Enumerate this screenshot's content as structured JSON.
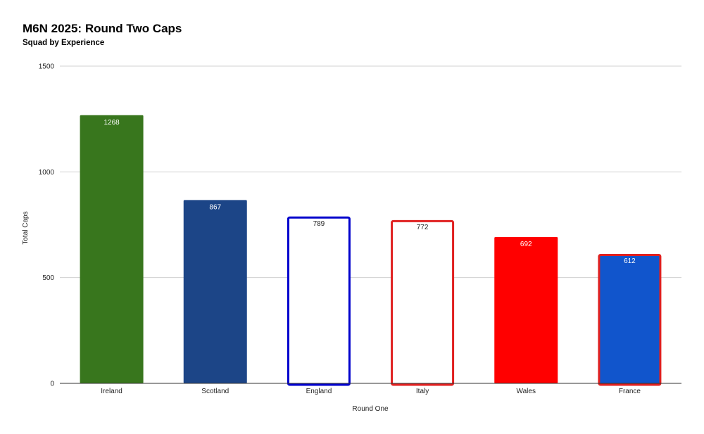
{
  "chart_data": {
    "type": "bar",
    "title": "M6N 2025: Round Two Caps",
    "subtitle": "Squad by Experience",
    "xlabel": "Round One",
    "ylabel": "Total Caps",
    "ylim": [
      0,
      1500
    ],
    "yticks": [
      0,
      500,
      1000,
      1500
    ],
    "grid": true,
    "categories": [
      "Ireland",
      "Scotland",
      "England",
      "Italy",
      "Wales",
      "France"
    ],
    "values": [
      1268,
      867,
      789,
      772,
      692,
      612
    ],
    "bar_styles": [
      {
        "fill": "#38761d",
        "stroke": "none",
        "label_color": "#ffffff"
      },
      {
        "fill": "#1c4587",
        "stroke": "none",
        "label_color": "#ffffff"
      },
      {
        "fill": "#ffffff",
        "stroke": "#0000cc",
        "label_color": "#222222"
      },
      {
        "fill": "#ffffff",
        "stroke": "#e02020",
        "label_color": "#222222"
      },
      {
        "fill": "#ff0000",
        "stroke": "none",
        "label_color": "#ffffff"
      },
      {
        "fill": "#1155cc",
        "stroke": "#e02020",
        "label_color": "#ffffff"
      }
    ]
  }
}
